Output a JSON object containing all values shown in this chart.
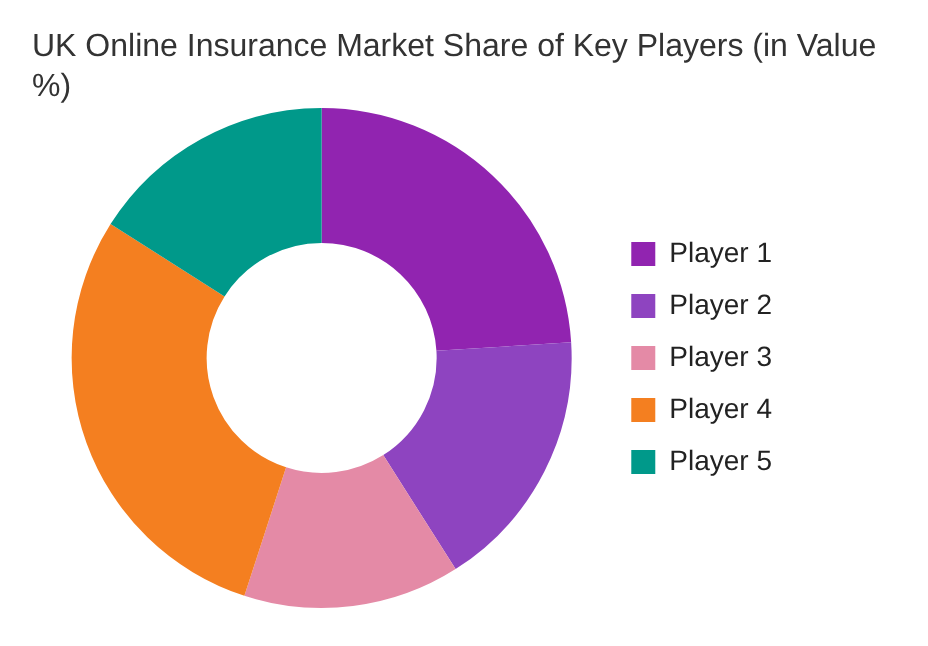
{
  "chart_data": {
    "type": "donut",
    "title": "UK Online Insurance Market Share of Key Players (in Value %)",
    "categories": [
      "Player 1",
      "Player 2",
      "Player 3",
      "Player 4",
      "Player 5"
    ],
    "values": [
      24,
      17,
      14,
      29,
      16
    ],
    "colors": [
      "#9124b0",
      "#8e44c0",
      "#e48aa6",
      "#f47f20",
      "#00998a"
    ],
    "legend": "right"
  }
}
